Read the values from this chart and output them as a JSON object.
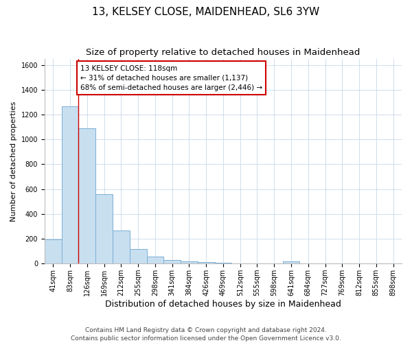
{
  "title1": "13, KELSEY CLOSE, MAIDENHEAD, SL6 3YW",
  "title2": "Size of property relative to detached houses in Maidenhead",
  "xlabel": "Distribution of detached houses by size in Maidenhead",
  "ylabel": "Number of detached properties",
  "categories": [
    "41sqm",
    "83sqm",
    "126sqm",
    "169sqm",
    "212sqm",
    "255sqm",
    "298sqm",
    "341sqm",
    "384sqm",
    "426sqm",
    "469sqm",
    "512sqm",
    "555sqm",
    "598sqm",
    "641sqm",
    "684sqm",
    "727sqm",
    "769sqm",
    "812sqm",
    "855sqm",
    "898sqm"
  ],
  "values": [
    195,
    1265,
    1090,
    560,
    265,
    120,
    55,
    30,
    20,
    10,
    5,
    2,
    1,
    1,
    20,
    1,
    0,
    0,
    0,
    0,
    0
  ],
  "bar_color": "#c8dff0",
  "bar_edge_color": "#7aafd4",
  "annotation_line1": "13 KELSEY CLOSE: 118sqm",
  "annotation_line2": "← 31% of detached houses are smaller (1,137)",
  "annotation_line3": "68% of semi-detached houses are larger (2,446) →",
  "annotation_box_color": "#ffffff",
  "annotation_box_edge_color": "#cc0000",
  "vline_color": "#cc0000",
  "vline_x": 1.5,
  "ylim": [
    0,
    1650
  ],
  "yticks": [
    0,
    200,
    400,
    600,
    800,
    1000,
    1200,
    1400,
    1600
  ],
  "footer1": "Contains HM Land Registry data © Crown copyright and database right 2024.",
  "footer2": "Contains public sector information licensed under the Open Government Licence v3.0.",
  "bg_color": "#ffffff",
  "grid_color": "#c8d8e8",
  "title1_fontsize": 11,
  "title2_fontsize": 9.5,
  "xlabel_fontsize": 9,
  "ylabel_fontsize": 8,
  "tick_fontsize": 7,
  "annotation_fontsize": 7.5,
  "footer_fontsize": 6.5
}
